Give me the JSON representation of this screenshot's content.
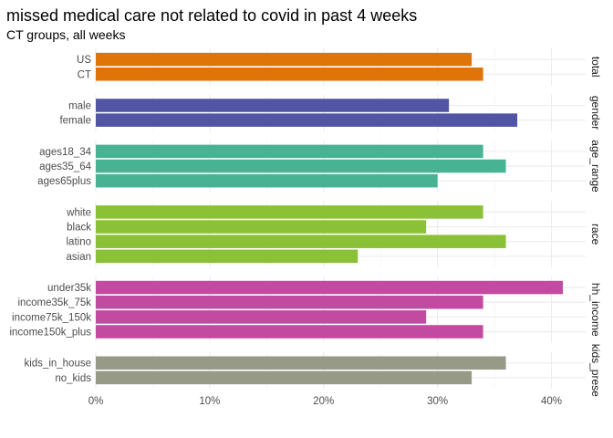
{
  "chart_data": {
    "type": "bar",
    "orientation": "horizontal",
    "title": "missed medical care not related to covid in past 4 weeks",
    "subtitle": "CT groups, all weeks",
    "xlabel": "",
    "ylabel": "",
    "xlim": [
      0,
      0.43
    ],
    "x_ticks": [
      0,
      0.1,
      0.2,
      0.3,
      0.4
    ],
    "x_tick_labels": [
      "0%",
      "10%",
      "20%",
      "30%",
      "40%"
    ],
    "grid": true,
    "legend": "none",
    "facets": [
      {
        "strip": "total",
        "color": "#e07408",
        "categories": [
          "US",
          "CT"
        ],
        "values": [
          0.33,
          0.34
        ]
      },
      {
        "strip": "gender",
        "color": "#5155a3",
        "categories": [
          "male",
          "female"
        ],
        "values": [
          0.31,
          0.37
        ]
      },
      {
        "strip": "age_range",
        "color": "#47b393",
        "categories": [
          "ages18_34",
          "ages35_64",
          "ages65plus"
        ],
        "values": [
          0.34,
          0.36,
          0.3
        ]
      },
      {
        "strip": "race",
        "color": "#8bc136",
        "categories": [
          "white",
          "black",
          "latino",
          "asian"
        ],
        "values": [
          0.34,
          0.29,
          0.36,
          0.23
        ]
      },
      {
        "strip": "hh_income",
        "color": "#c24aa0",
        "categories": [
          "under35k",
          "income35k_75k",
          "income75k_150k",
          "income150k_plus"
        ],
        "values": [
          0.41,
          0.34,
          0.29,
          0.34
        ]
      },
      {
        "strip": "kids_prese",
        "color": "#989a88",
        "categories": [
          "kids_in_house",
          "no_kids"
        ],
        "values": [
          0.36,
          0.33
        ]
      }
    ]
  }
}
